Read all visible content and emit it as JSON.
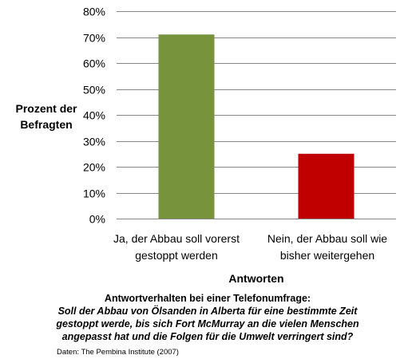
{
  "chart_data": {
    "type": "bar",
    "categories": [
      "Ja, der Abbau soll vorerst gestoppt werden",
      "Nein, der Abbau soll wie bisher weitergehen"
    ],
    "category_lines": [
      [
        "Ja, der Abbau soll vorerst",
        "gestoppt werden"
      ],
      [
        "Nein, der Abbau soll wie",
        "bisher weitergehen"
      ]
    ],
    "values": [
      71,
      25
    ],
    "colors": [
      "#77933c",
      "#c00000"
    ],
    "xlabel": "Antworten",
    "ylabel_lines": [
      "Prozent der",
      "Befragten"
    ],
    "ylim": [
      0,
      80
    ],
    "yticks": [
      0,
      10,
      20,
      30,
      40,
      50,
      60,
      70,
      80
    ],
    "ytick_suffix": "%",
    "grid": true
  },
  "caption": {
    "line1": "Antwortverhalten bei einer Telefonumfrage:",
    "question": "Soll der Abbau von Ölsanden in Alberta für eine bestimmte Zeit gestoppt werde, bis sich Fort McMurray an die vielen Menschen angepasst hat und die Folgen für die Umwelt verringert sind?"
  },
  "source": "Daten: The Pembina Institute (2007)"
}
